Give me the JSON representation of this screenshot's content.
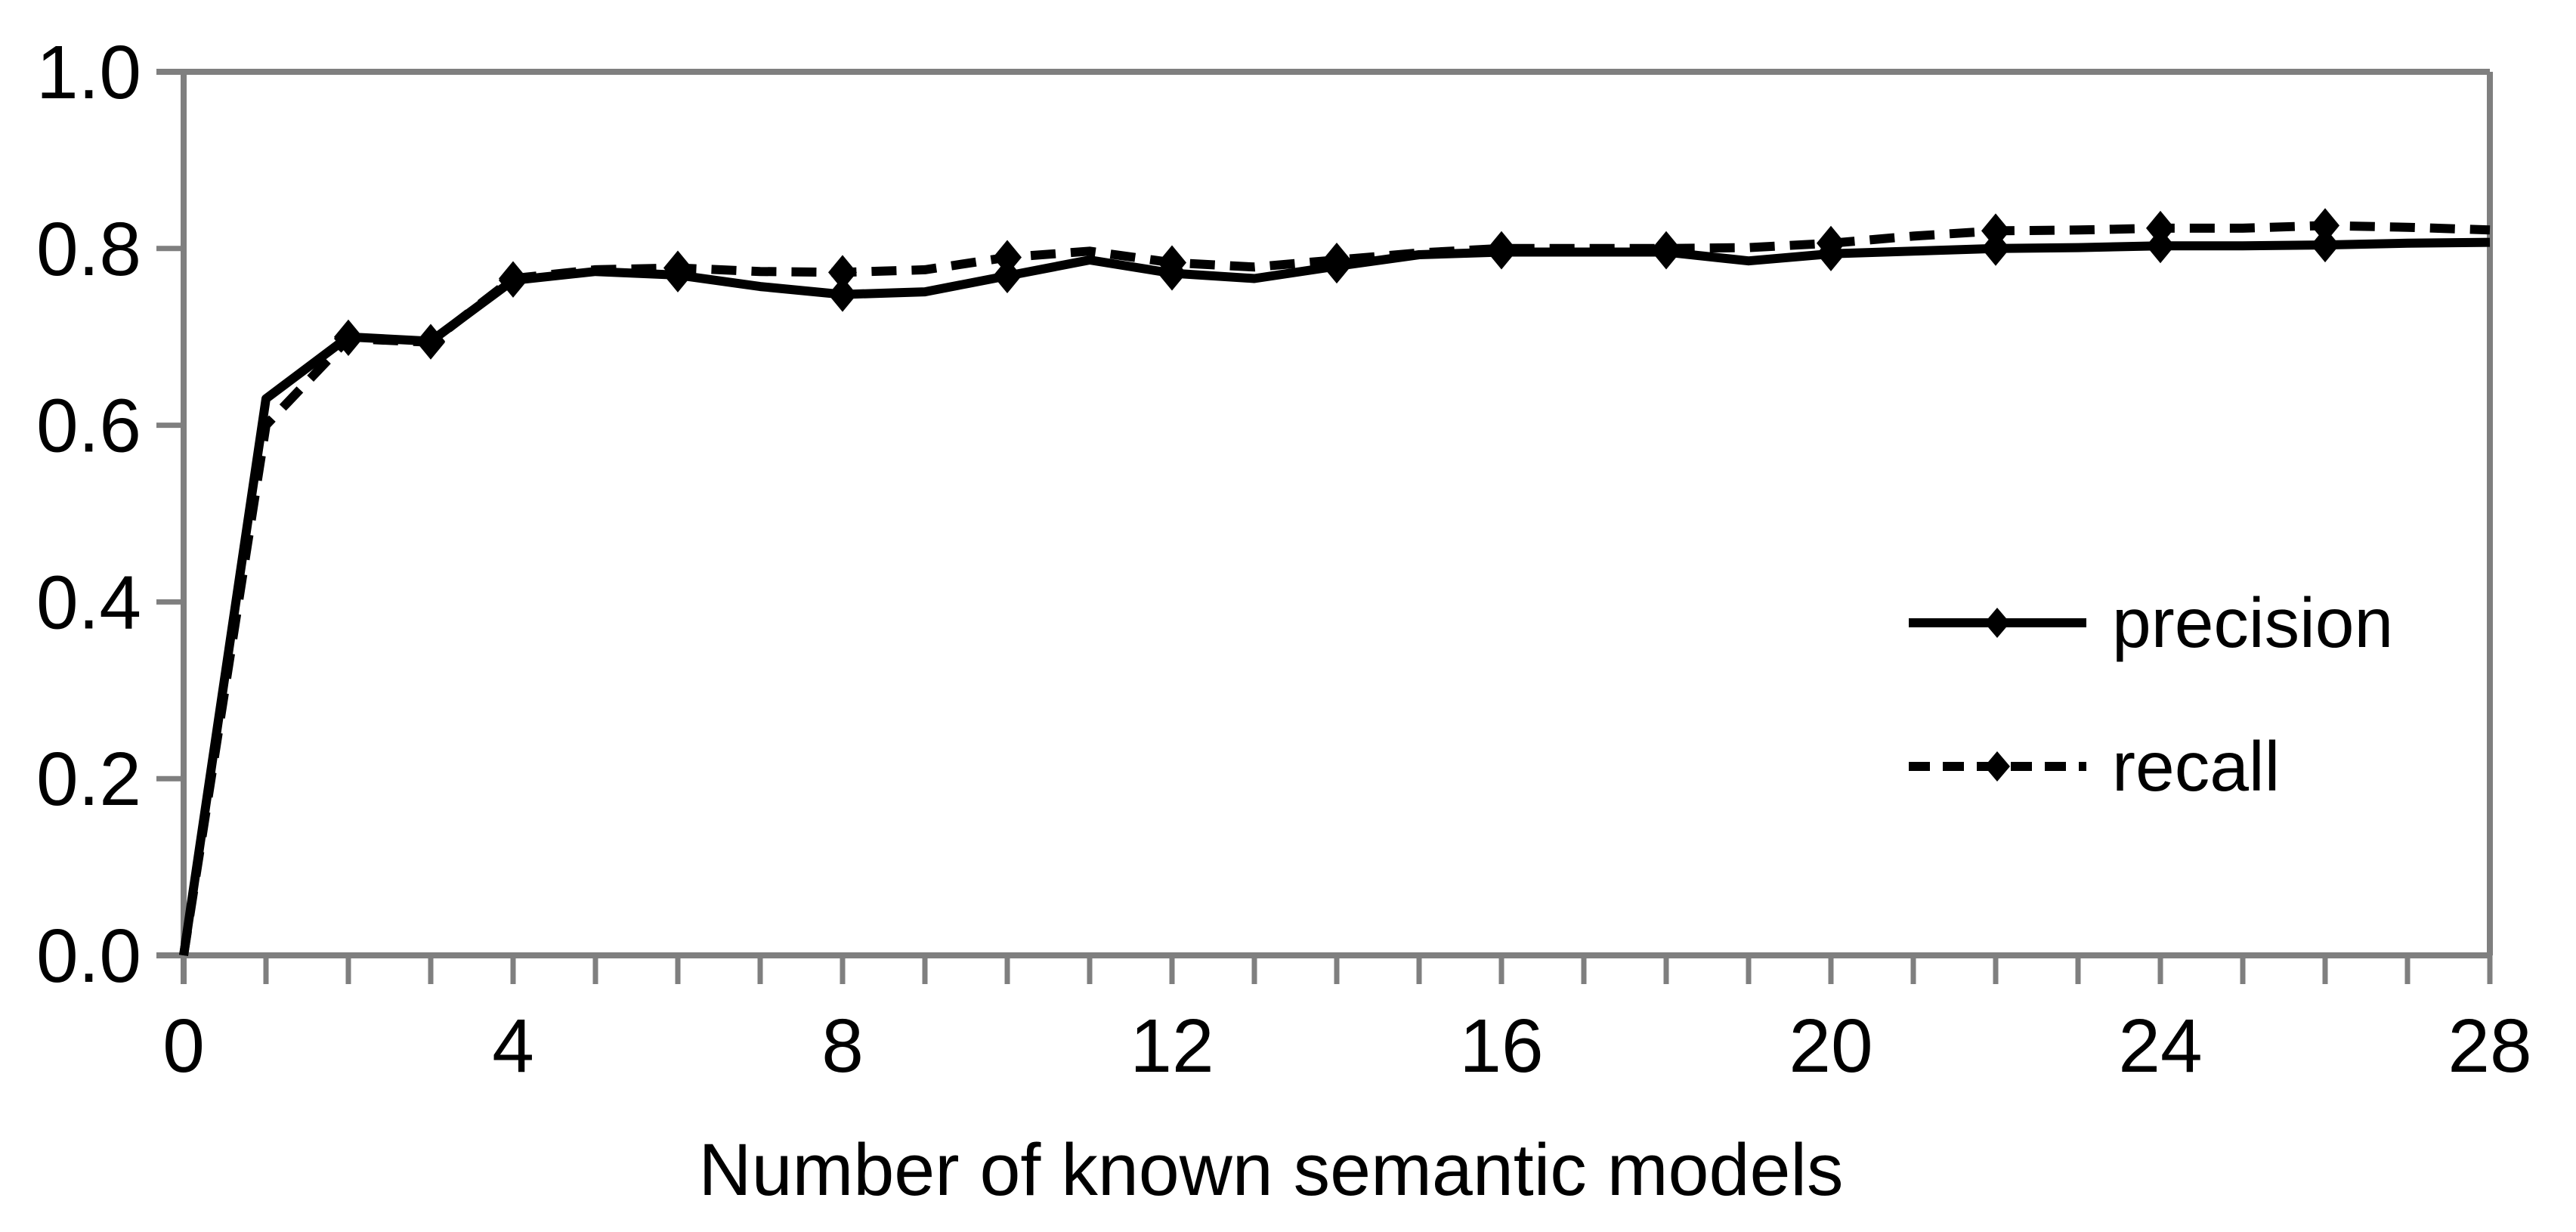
{
  "chart_data": {
    "type": "line",
    "title": "",
    "xlabel": "Number of known semantic models",
    "ylabel": "",
    "xlim": [
      0,
      28
    ],
    "ylim": [
      0.0,
      1.0
    ],
    "grid": false,
    "frame": true,
    "legend_position": "inside-right",
    "x": [
      0,
      1,
      2,
      3,
      4,
      5,
      6,
      7,
      8,
      9,
      10,
      11,
      12,
      13,
      14,
      15,
      16,
      17,
      18,
      19,
      20,
      21,
      22,
      23,
      24,
      25,
      26,
      27,
      28
    ],
    "series": [
      {
        "name": "precision",
        "style": "solid",
        "marker": "diamond",
        "color": "#000000",
        "values": [
          0.0,
          0.63,
          0.7,
          0.695,
          0.764,
          0.774,
          0.77,
          0.757,
          0.748,
          0.751,
          0.769,
          0.787,
          0.772,
          0.766,
          0.78,
          0.793,
          0.796,
          0.796,
          0.796,
          0.786,
          0.794,
          0.797,
          0.8,
          0.801,
          0.803,
          0.803,
          0.804,
          0.806,
          0.807
        ]
      },
      {
        "name": "recall",
        "style": "dashed",
        "marker": "diamond",
        "color": "#000000",
        "values": [
          0.0,
          0.6,
          0.698,
          0.694,
          0.766,
          0.776,
          0.778,
          0.774,
          0.773,
          0.776,
          0.79,
          0.797,
          0.784,
          0.779,
          0.787,
          0.795,
          0.8,
          0.8,
          0.8,
          0.801,
          0.806,
          0.814,
          0.82,
          0.821,
          0.823,
          0.823,
          0.826,
          0.824,
          0.821
        ]
      }
    ],
    "marker_x": [
      2,
      3,
      4,
      6,
      8,
      10,
      12,
      14,
      16,
      18,
      20,
      22,
      24,
      26
    ],
    "x_major_ticks": [
      0,
      4,
      8,
      12,
      16,
      20,
      24,
      28
    ],
    "x_major_tick_labels": [
      "0",
      "4",
      "8",
      "12",
      "16",
      "20",
      "24",
      "28"
    ],
    "x_minor_tick_step": 1,
    "y_ticks": [
      0.0,
      0.2,
      0.4,
      0.6,
      0.8,
      1.0
    ],
    "y_tick_labels": [
      "0.0",
      "0.2",
      "0.4",
      "0.6",
      "0.8",
      "1.0"
    ],
    "axis_color": "#7f7f7f",
    "text_color": "#000000"
  }
}
